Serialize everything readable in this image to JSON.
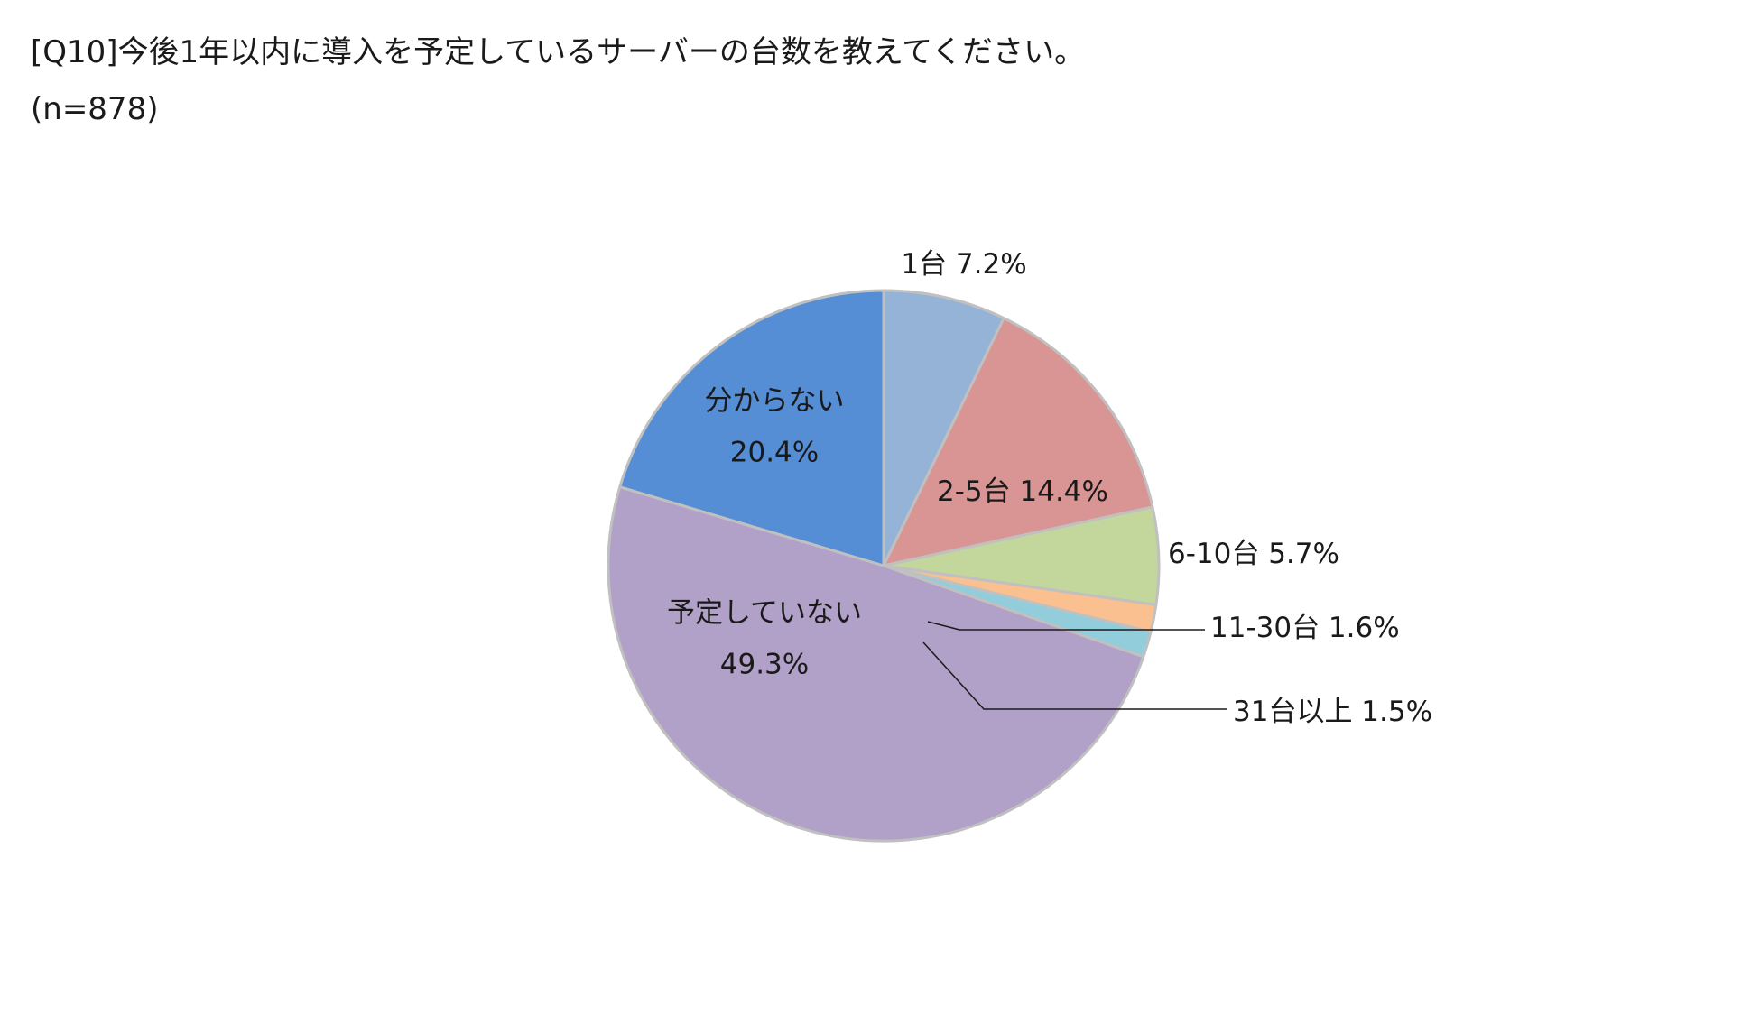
{
  "header": {
    "title": "[Q10]今後1年以内に導入を予定しているサーバーの台数を教えてください。",
    "subtitle": "(n=878)"
  },
  "chart_data": {
    "type": "pie",
    "title": "[Q10]今後1年以内に導入を予定しているサーバーの台数を教えてください。",
    "subtitle": "(n=878)",
    "start": "12 o'clock, clockwise",
    "slices": [
      {
        "label": "1台",
        "value": 7.2,
        "display": "1台 7.2%",
        "color": "#95b3d7"
      },
      {
        "label": "2-5台",
        "value": 14.4,
        "display": "2-5台 14.4%",
        "color": "#d99594"
      },
      {
        "label": "6-10台",
        "value": 5.7,
        "display": "6-10台 5.7%",
        "color": "#c3d69b"
      },
      {
        "label": "11-30台",
        "value": 1.6,
        "display": "11-30台 1.6%",
        "color": "#fac08f"
      },
      {
        "label": "31台以上",
        "value": 1.5,
        "display": "31台以上 1.5%",
        "color": "#92cddc"
      },
      {
        "label": "予定していない",
        "value": 49.3,
        "display": "49.3%",
        "color": "#b1a0c7"
      },
      {
        "label": "分からない",
        "value": 20.4,
        "display": "20.4%",
        "color": "#558ed5"
      }
    ],
    "slice_border_color": "#c0c0c0",
    "legend": "none"
  }
}
